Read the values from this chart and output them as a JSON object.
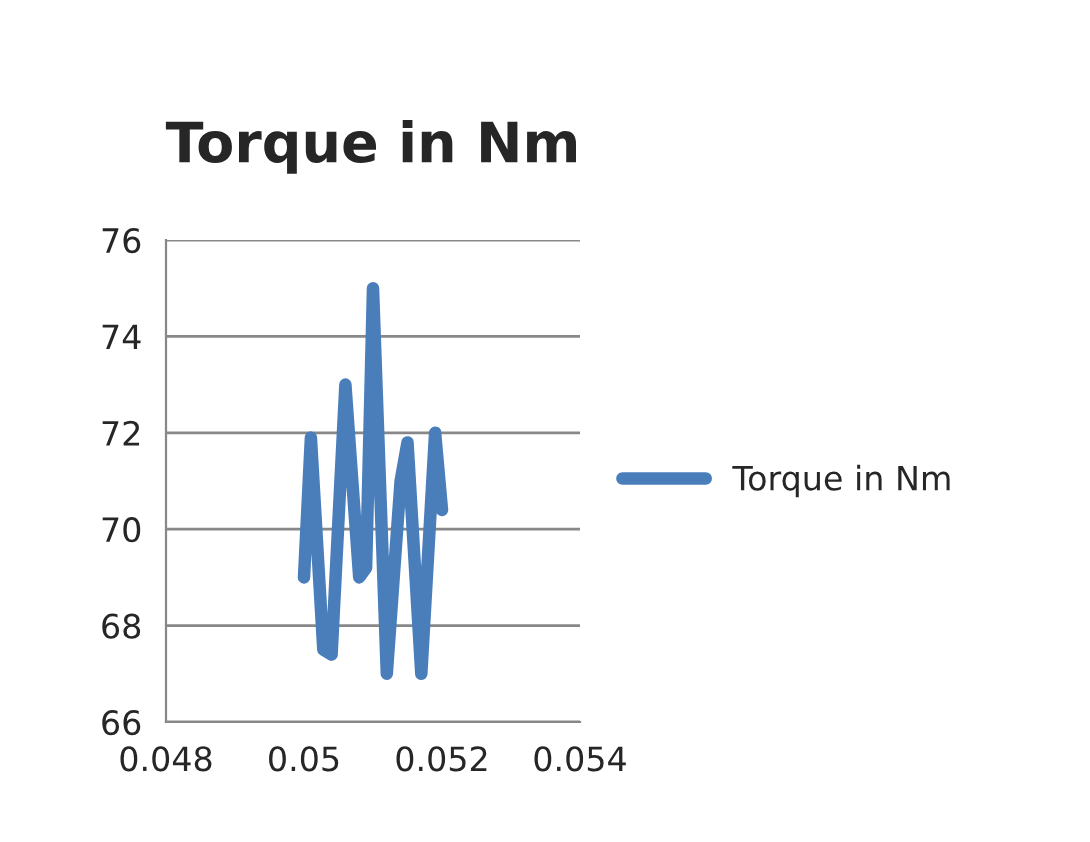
{
  "chart_data": {
    "type": "line",
    "title": "Torque in Nm",
    "series": [
      {
        "name": "Torque in Nm",
        "color": "#4a7ebb",
        "x": [
          0.05,
          0.0501,
          0.05028,
          0.0504,
          0.0506,
          0.0508,
          0.0509,
          0.051,
          0.0512,
          0.0514,
          0.0515,
          0.0517,
          0.0519,
          0.052
        ],
        "values": [
          69,
          71.9,
          67.5,
          67.4,
          73,
          69,
          69.2,
          75,
          67,
          71,
          71.8,
          67,
          72,
          70.4
        ]
      }
    ],
    "xlim": [
      0.048,
      0.054
    ],
    "xticks": [
      0.048,
      0.05,
      0.052,
      0.054
    ],
    "ylim": [
      66,
      76
    ],
    "yticks": [
      66,
      68,
      70,
      72,
      74,
      76
    ],
    "grid": "y",
    "legend": "right",
    "marker": "none",
    "line_style": "solid"
  }
}
